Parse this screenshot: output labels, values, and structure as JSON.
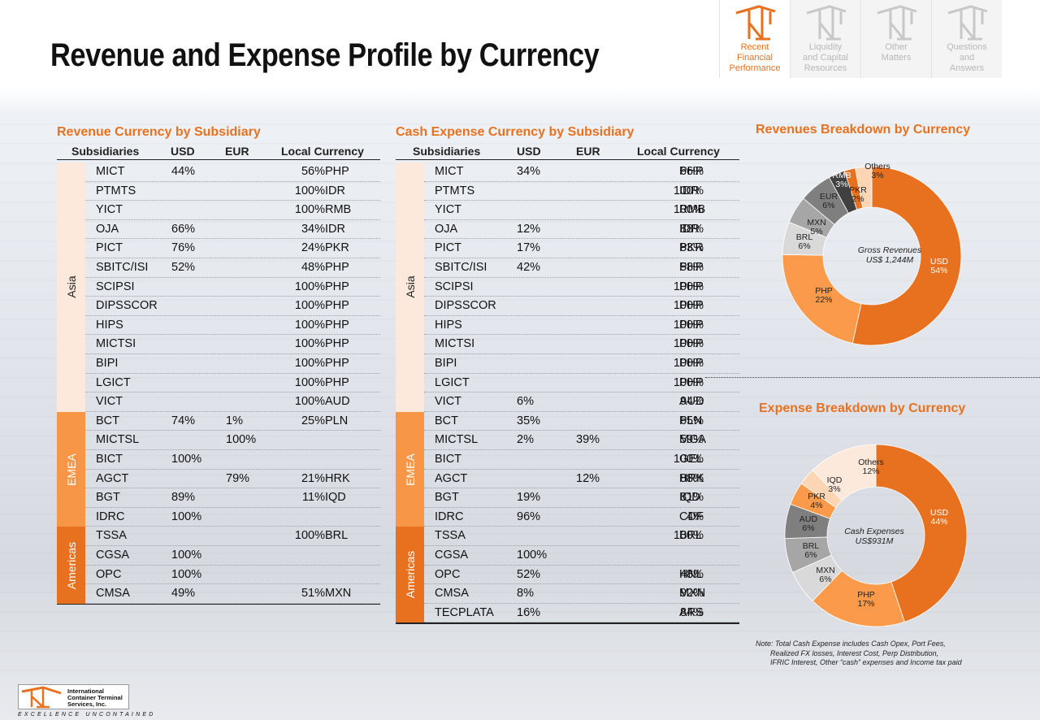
{
  "title": "Revenue and Expense Profile by Currency",
  "nav": [
    {
      "label": "Recent Financial Performance",
      "lines": [
        "Recent",
        "Financial",
        "Performance"
      ],
      "active": true
    },
    {
      "label": "Liquidity and Capital Resources",
      "lines": [
        "Liquidity",
        "and Capital",
        "Resources"
      ],
      "active": false
    },
    {
      "label": "Other Matters",
      "lines": [
        "",
        "Other",
        "Matters"
      ],
      "active": false
    },
    {
      "label": "Questions and Answers",
      "lines": [
        "Questions",
        "and",
        "Answers"
      ],
      "active": false
    }
  ],
  "revenue_table": {
    "title": "Revenue Currency by Subsidiary",
    "headers": [
      "Subsidiaries",
      "USD",
      "EUR",
      "Local Currency"
    ],
    "regions": [
      {
        "name": "Asia",
        "color": "#fde9dc",
        "rows": 13
      },
      {
        "name": "EMEA",
        "color": "#f79646",
        "rows": 6
      },
      {
        "name": "Americas",
        "color": "#e8711f",
        "rows": 4
      }
    ],
    "rows": [
      {
        "sub": "MICT",
        "usd": "44%",
        "eur": "",
        "pct": "56%",
        "cur": "PHP"
      },
      {
        "sub": "PTMTS",
        "usd": "",
        "eur": "",
        "pct": "100%",
        "cur": "IDR"
      },
      {
        "sub": "YICT",
        "usd": "",
        "eur": "",
        "pct": "100%",
        "cur": "RMB"
      },
      {
        "sub": "OJA",
        "usd": "66%",
        "eur": "",
        "pct": "34%",
        "cur": "IDR"
      },
      {
        "sub": "PICT",
        "usd": "76%",
        "eur": "",
        "pct": "24%",
        "cur": "PKR"
      },
      {
        "sub": "SBITC/ISI",
        "usd": "52%",
        "eur": "",
        "pct": "48%",
        "cur": "PHP"
      },
      {
        "sub": "SCIPSI",
        "usd": "",
        "eur": "",
        "pct": "100%",
        "cur": "PHP"
      },
      {
        "sub": "DIPSSCOR",
        "usd": "",
        "eur": "",
        "pct": "100%",
        "cur": "PHP"
      },
      {
        "sub": "HIPS",
        "usd": "",
        "eur": "",
        "pct": "100%",
        "cur": "PHP"
      },
      {
        "sub": "MICTSI",
        "usd": "",
        "eur": "",
        "pct": "100%",
        "cur": "PHP"
      },
      {
        "sub": "BIPI",
        "usd": "",
        "eur": "",
        "pct": "100%",
        "cur": "PHP"
      },
      {
        "sub": "LGICT",
        "usd": "",
        "eur": "",
        "pct": "100%",
        "cur": "PHP"
      },
      {
        "sub": "VICT",
        "usd": "",
        "eur": "",
        "pct": "100%",
        "cur": "AUD"
      },
      {
        "sub": "BCT",
        "usd": "74%",
        "eur": "1%",
        "pct": "25%",
        "cur": "PLN"
      },
      {
        "sub": "MICTSL",
        "usd": "",
        "eur": "100%",
        "pct": "",
        "cur": ""
      },
      {
        "sub": "BICT",
        "usd": "100%",
        "eur": "",
        "pct": "",
        "cur": ""
      },
      {
        "sub": "AGCT",
        "usd": "",
        "eur": "79%",
        "pct": "21%",
        "cur": "HRK"
      },
      {
        "sub": "BGT",
        "usd": "89%",
        "eur": "",
        "pct": "11%",
        "cur": "IQD"
      },
      {
        "sub": "IDRC",
        "usd": "100%",
        "eur": "",
        "pct": "",
        "cur": ""
      },
      {
        "sub": "TSSA",
        "usd": "",
        "eur": "",
        "pct": "100%",
        "cur": "BRL"
      },
      {
        "sub": "CGSA",
        "usd": "100%",
        "eur": "",
        "pct": "",
        "cur": ""
      },
      {
        "sub": "OPC",
        "usd": "100%",
        "eur": "",
        "pct": "",
        "cur": ""
      },
      {
        "sub": "CMSA",
        "usd": "49%",
        "eur": "",
        "pct": "51%",
        "cur": "MXN"
      }
    ]
  },
  "expense_table": {
    "title": "Cash Expense Currency by Subsidiary",
    "headers": [
      "Subsidiaries",
      "USD",
      "EUR",
      "Local Currency"
    ],
    "regions": [
      {
        "name": "Asia",
        "color": "#fde9dc",
        "rows": 13
      },
      {
        "name": "EMEA",
        "color": "#f79646",
        "rows": 6
      },
      {
        "name": "Americas",
        "color": "#e8711f",
        "rows": 5
      }
    ],
    "rows": [
      {
        "sub": "MICT",
        "usd": "34%",
        "eur": "",
        "pct": "66%",
        "cur": "PHP"
      },
      {
        "sub": "PTMTS",
        "usd": "",
        "eur": "",
        "pct": "100%",
        "cur": "IDR"
      },
      {
        "sub": "YICT",
        "usd": "",
        "eur": "",
        "pct": "100%",
        "cur": "RMB"
      },
      {
        "sub": "OJA",
        "usd": "12%",
        "eur": "",
        "pct": "88%",
        "cur": "IDR"
      },
      {
        "sub": "PICT",
        "usd": "17%",
        "eur": "",
        "pct": "83%",
        "cur": "PKR"
      },
      {
        "sub": "SBITC/ISI",
        "usd": "42%",
        "eur": "",
        "pct": "58%",
        "cur": "PHP"
      },
      {
        "sub": "SCIPSI",
        "usd": "",
        "eur": "",
        "pct": "100%",
        "cur": "PHP"
      },
      {
        "sub": "DIPSSCOR",
        "usd": "",
        "eur": "",
        "pct": "100%",
        "cur": "PHP"
      },
      {
        "sub": "HIPS",
        "usd": "",
        "eur": "",
        "pct": "100%",
        "cur": "PHP"
      },
      {
        "sub": "MICTSI",
        "usd": "",
        "eur": "",
        "pct": "100%",
        "cur": "PHP"
      },
      {
        "sub": "BIPI",
        "usd": "",
        "eur": "",
        "pct": "100%",
        "cur": "PHP"
      },
      {
        "sub": "LGICT",
        "usd": "",
        "eur": "",
        "pct": "100%",
        "cur": "PHP"
      },
      {
        "sub": "VICT",
        "usd": "6%",
        "eur": "",
        "pct": "94%",
        "cur": "AUD"
      },
      {
        "sub": "BCT",
        "usd": "35%",
        "eur": "",
        "pct": "65%",
        "cur": "PLN"
      },
      {
        "sub": "MICTSL",
        "usd": "2%",
        "eur": "39%",
        "pct": "59%",
        "cur": "MGA"
      },
      {
        "sub": "BICT",
        "usd": "",
        "eur": "",
        "pct": "100%",
        "cur": "GEL"
      },
      {
        "sub": "AGCT",
        "usd": "",
        "eur": "12%",
        "pct": "88%",
        "cur": "HRK"
      },
      {
        "sub": "BGT",
        "usd": "19%",
        "eur": "",
        "pct": "81%",
        "cur": "IQD"
      },
      {
        "sub": "IDRC",
        "usd": "96%",
        "eur": "",
        "pct": "4%",
        "cur": "CDF"
      },
      {
        "sub": "TSSA",
        "usd": "",
        "eur": "",
        "pct": "100%",
        "cur": "BRL"
      },
      {
        "sub": "CGSA",
        "usd": "100%",
        "eur": "",
        "pct": "",
        "cur": ""
      },
      {
        "sub": "OPC",
        "usd": "52%",
        "eur": "",
        "pct": "48%",
        "cur": "HNL"
      },
      {
        "sub": "CMSA",
        "usd": "8%",
        "eur": "",
        "pct": "92%",
        "cur": "MXN"
      },
      {
        "sub": "TECPLATA",
        "usd": "16%",
        "eur": "",
        "pct": "84%",
        "cur": "ARS"
      }
    ]
  },
  "chart_data": [
    {
      "type": "pie",
      "title": "Revenues Breakdown by Currency",
      "center_label": [
        "Gross Revenues",
        "US$ 1,244M"
      ],
      "slices": [
        {
          "name": "USD",
          "value": 54,
          "label": "54%",
          "color": "#e8711f"
        },
        {
          "name": "PHP",
          "value": 22,
          "label": "22%",
          "color": "#fb9a4a"
        },
        {
          "name": "BRL",
          "value": 6,
          "label": "6%",
          "color": "#d9d9d9"
        },
        {
          "name": "MXN",
          "value": 5,
          "label": "5%",
          "color": "#a6a6a6"
        },
        {
          "name": "EUR",
          "value": 6,
          "label": "6%",
          "color": "#7f7f7f"
        },
        {
          "name": "RMB",
          "value": 3,
          "label": "3%",
          "color": "#404040"
        },
        {
          "name": "PKR",
          "value": 2,
          "label": "2%",
          "color": "#e8711f"
        },
        {
          "name": "Others",
          "value": 3,
          "label": "3%",
          "color": "#fcd5b4"
        }
      ]
    },
    {
      "type": "pie",
      "title": "Expense Breakdown by Currency",
      "center_label": [
        "Cash Expenses",
        "US$931M"
      ],
      "slices": [
        {
          "name": "USD",
          "value": 44,
          "label": "44%",
          "color": "#e8711f"
        },
        {
          "name": "PHP",
          "value": 17,
          "label": "17%",
          "color": "#fb9a4a"
        },
        {
          "name": "MXN",
          "value": 6,
          "label": "6%",
          "color": "#d9d9d9"
        },
        {
          "name": "BRL",
          "value": 6,
          "label": "6%",
          "color": "#a6a6a6"
        },
        {
          "name": "AUD",
          "value": 6,
          "label": "6%",
          "color": "#7f7f7f"
        },
        {
          "name": "PKR",
          "value": 4,
          "label": "4%",
          "color": "#fb9a4a"
        },
        {
          "name": "IQD",
          "value": 3,
          "label": "3%",
          "color": "#fcd5b4"
        },
        {
          "name": "Others",
          "value": 12,
          "label": "12%",
          "color": "#fde9dc"
        }
      ]
    }
  ],
  "note": [
    "Note: Total Cash Expense includes Cash Opex, Port Fees,",
    "Realized  FX losses, Interest Cost, Perp Distribution,",
    "IFRIC Interest, Other “cash”  expenses  and Income tax paid"
  ],
  "logo": {
    "lines": [
      "International",
      "Container Terminal",
      "Services, Inc."
    ],
    "tagline": "Excellence Uncontained"
  },
  "colors": {
    "accent": "#e8711f",
    "asia_band": "#fde9dc",
    "emea_band": "#f79646",
    "americas_band": "#e8711f"
  }
}
